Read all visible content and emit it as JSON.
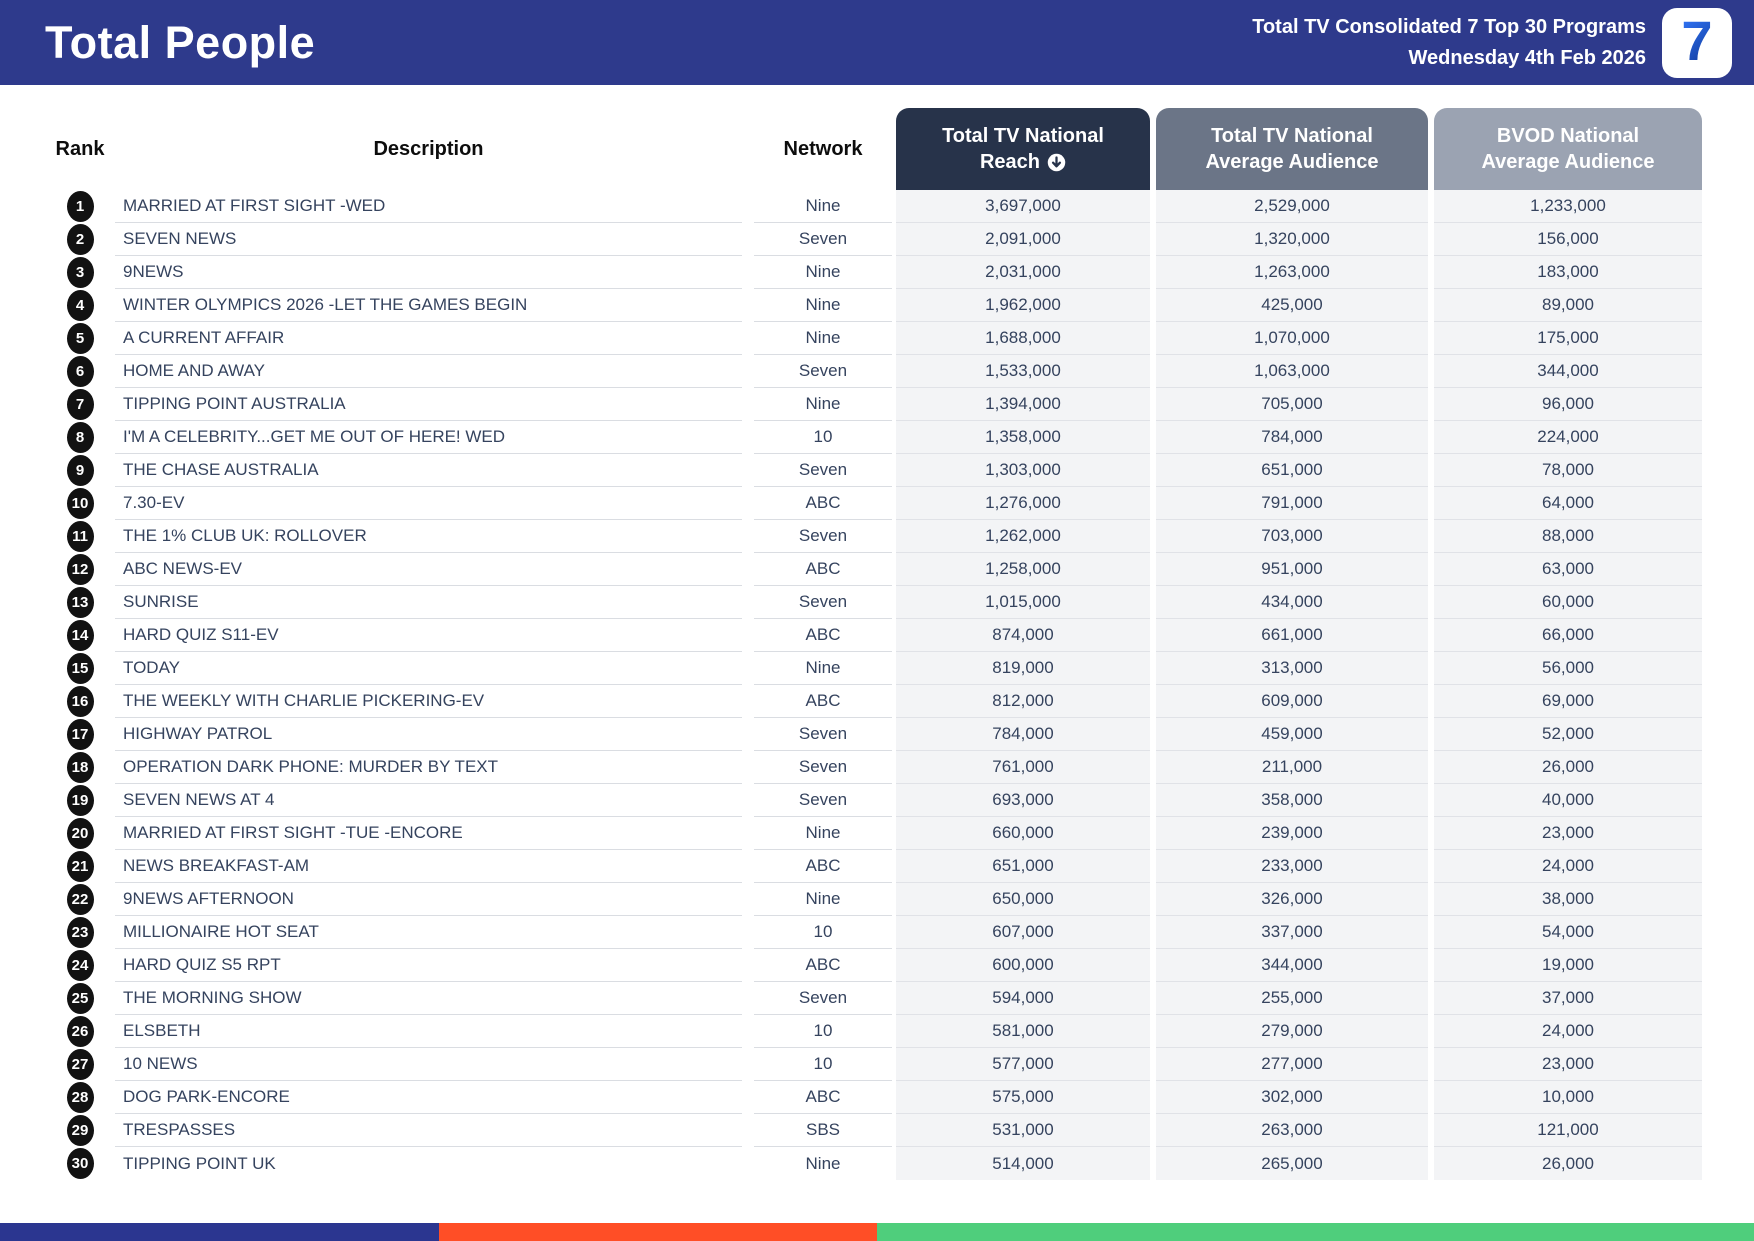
{
  "header": {
    "title": "Total People",
    "report_title": "Total TV Consolidated 7 Top 30 Programs",
    "report_date": "Wednesday 4th Feb 2026",
    "logo": "7"
  },
  "columns": {
    "rank": "Rank",
    "description": "Description",
    "network": "Network",
    "reach_line1": "Total TV National",
    "reach_line2": "Reach",
    "avg_line1": "Total TV National",
    "avg_line2": "Average Audience",
    "bvod_line1": "BVOD National",
    "bvod_line2": "Average Audience",
    "reach_sort_icon": "arrow-down-circle"
  },
  "colors": {
    "banner_bg": "#2E3A8C",
    "pill_reach_bg": "#27334A",
    "pill_avg_bg": "#6B7587",
    "pill_bvod_bg": "#9BA3B2",
    "rank_badge_bg": "#121212",
    "numeric_column_bg": "#F3F4F6",
    "row_text": "#35435E"
  },
  "rows": [
    {
      "rank": "1",
      "description": "MARRIED AT FIRST SIGHT -WED",
      "network": "Nine",
      "reach": "3,697,000",
      "avg": "2,529,000",
      "bvod": "1,233,000"
    },
    {
      "rank": "2",
      "description": "SEVEN NEWS",
      "network": "Seven",
      "reach": "2,091,000",
      "avg": "1,320,000",
      "bvod": "156,000"
    },
    {
      "rank": "3",
      "description": "9NEWS",
      "network": "Nine",
      "reach": "2,031,000",
      "avg": "1,263,000",
      "bvod": "183,000"
    },
    {
      "rank": "4",
      "description": "WINTER OLYMPICS 2026 -LET THE GAMES BEGIN",
      "network": "Nine",
      "reach": "1,962,000",
      "avg": "425,000",
      "bvod": "89,000"
    },
    {
      "rank": "5",
      "description": "A CURRENT AFFAIR",
      "network": "Nine",
      "reach": "1,688,000",
      "avg": "1,070,000",
      "bvod": "175,000"
    },
    {
      "rank": "6",
      "description": "HOME AND AWAY",
      "network": "Seven",
      "reach": "1,533,000",
      "avg": "1,063,000",
      "bvod": "344,000"
    },
    {
      "rank": "7",
      "description": "TIPPING POINT AUSTRALIA",
      "network": "Nine",
      "reach": "1,394,000",
      "avg": "705,000",
      "bvod": "96,000"
    },
    {
      "rank": "8",
      "description": "I'M A CELEBRITY...GET ME OUT OF HERE! WED",
      "network": "10",
      "reach": "1,358,000",
      "avg": "784,000",
      "bvod": "224,000"
    },
    {
      "rank": "9",
      "description": "THE CHASE AUSTRALIA",
      "network": "Seven",
      "reach": "1,303,000",
      "avg": "651,000",
      "bvod": "78,000"
    },
    {
      "rank": "10",
      "description": "7.30-EV",
      "network": "ABC",
      "reach": "1,276,000",
      "avg": "791,000",
      "bvod": "64,000"
    },
    {
      "rank": "11",
      "description": "THE 1% CLUB UK: ROLLOVER",
      "network": "Seven",
      "reach": "1,262,000",
      "avg": "703,000",
      "bvod": "88,000"
    },
    {
      "rank": "12",
      "description": "ABC NEWS-EV",
      "network": "ABC",
      "reach": "1,258,000",
      "avg": "951,000",
      "bvod": "63,000"
    },
    {
      "rank": "13",
      "description": "SUNRISE",
      "network": "Seven",
      "reach": "1,015,000",
      "avg": "434,000",
      "bvod": "60,000"
    },
    {
      "rank": "14",
      "description": "HARD QUIZ S11-EV",
      "network": "ABC",
      "reach": "874,000",
      "avg": "661,000",
      "bvod": "66,000"
    },
    {
      "rank": "15",
      "description": "TODAY",
      "network": "Nine",
      "reach": "819,000",
      "avg": "313,000",
      "bvod": "56,000"
    },
    {
      "rank": "16",
      "description": "THE WEEKLY WITH CHARLIE PICKERING-EV",
      "network": "ABC",
      "reach": "812,000",
      "avg": "609,000",
      "bvod": "69,000"
    },
    {
      "rank": "17",
      "description": "HIGHWAY PATROL",
      "network": "Seven",
      "reach": "784,000",
      "avg": "459,000",
      "bvod": "52,000"
    },
    {
      "rank": "18",
      "description": "OPERATION DARK PHONE: MURDER BY TEXT",
      "network": "Seven",
      "reach": "761,000",
      "avg": "211,000",
      "bvod": "26,000"
    },
    {
      "rank": "19",
      "description": "SEVEN NEWS AT 4",
      "network": "Seven",
      "reach": "693,000",
      "avg": "358,000",
      "bvod": "40,000"
    },
    {
      "rank": "20",
      "description": "MARRIED AT FIRST SIGHT -TUE -ENCORE",
      "network": "Nine",
      "reach": "660,000",
      "avg": "239,000",
      "bvod": "23,000"
    },
    {
      "rank": "21",
      "description": "NEWS BREAKFAST-AM",
      "network": "ABC",
      "reach": "651,000",
      "avg": "233,000",
      "bvod": "24,000"
    },
    {
      "rank": "22",
      "description": "9NEWS AFTERNOON",
      "network": "Nine",
      "reach": "650,000",
      "avg": "326,000",
      "bvod": "38,000"
    },
    {
      "rank": "23",
      "description": "MILLIONAIRE HOT SEAT",
      "network": "10",
      "reach": "607,000",
      "avg": "337,000",
      "bvod": "54,000"
    },
    {
      "rank": "24",
      "description": "HARD QUIZ S5 RPT",
      "network": "ABC",
      "reach": "600,000",
      "avg": "344,000",
      "bvod": "19,000"
    },
    {
      "rank": "25",
      "description": "THE MORNING SHOW",
      "network": "Seven",
      "reach": "594,000",
      "avg": "255,000",
      "bvod": "37,000"
    },
    {
      "rank": "26",
      "description": "ELSBETH",
      "network": "10",
      "reach": "581,000",
      "avg": "279,000",
      "bvod": "24,000"
    },
    {
      "rank": "27",
      "description": "10 NEWS",
      "network": "10",
      "reach": "577,000",
      "avg": "277,000",
      "bvod": "23,000"
    },
    {
      "rank": "28",
      "description": "DOG PARK-ENCORE",
      "network": "ABC",
      "reach": "575,000",
      "avg": "302,000",
      "bvod": "10,000"
    },
    {
      "rank": "29",
      "description": "TRESPASSES",
      "network": "SBS",
      "reach": "531,000",
      "avg": "263,000",
      "bvod": "121,000"
    },
    {
      "rank": "30",
      "description": "TIPPING POINT UK",
      "network": "Nine",
      "reach": "514,000",
      "avg": "265,000",
      "bvod": "26,000"
    }
  ],
  "footer": {
    "segments": [
      {
        "name": "blue",
        "color": "#2B3690",
        "width": "25%"
      },
      {
        "name": "orange",
        "color": "#FF4E26",
        "width": "25%"
      },
      {
        "name": "green",
        "color": "#4FCE7C",
        "width": "50%"
      }
    ]
  }
}
